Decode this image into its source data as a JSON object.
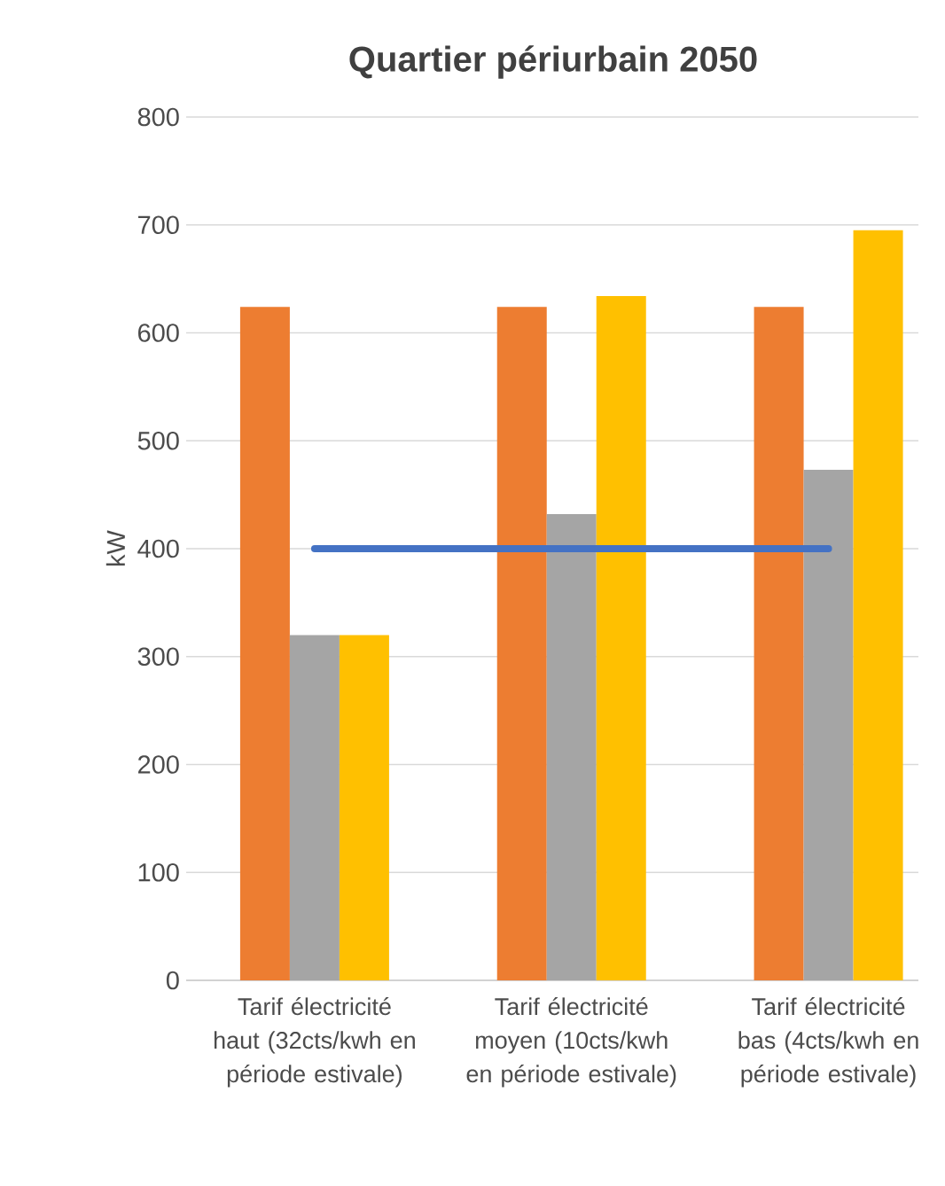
{
  "chart_data": {
    "type": "bar",
    "title": "Quartier périurbain 2050",
    "ylabel": "kW",
    "categories": [
      "Tarif électricité haut (32cts/kwh en période estivale)",
      "Tarif électricité moyen (10cts/kwh en période estivale)",
      "Tarif électricité bas (4cts/kwh en période estivale)"
    ],
    "series": [
      {
        "color": "#ed7d31",
        "values": [
          624,
          624,
          624
        ]
      },
      {
        "color": "#a5a5a5",
        "values": [
          320,
          432,
          473
        ]
      },
      {
        "color": "#ffc000",
        "values": [
          320,
          634,
          695
        ]
      },
      {
        "type": "line",
        "color": "#4472c4",
        "values": [
          400,
          400,
          400
        ]
      }
    ],
    "ylim": [
      0,
      800
    ],
    "yticks": [
      0,
      100,
      200,
      300,
      400,
      500,
      600,
      700,
      800
    ],
    "grid": "y"
  }
}
